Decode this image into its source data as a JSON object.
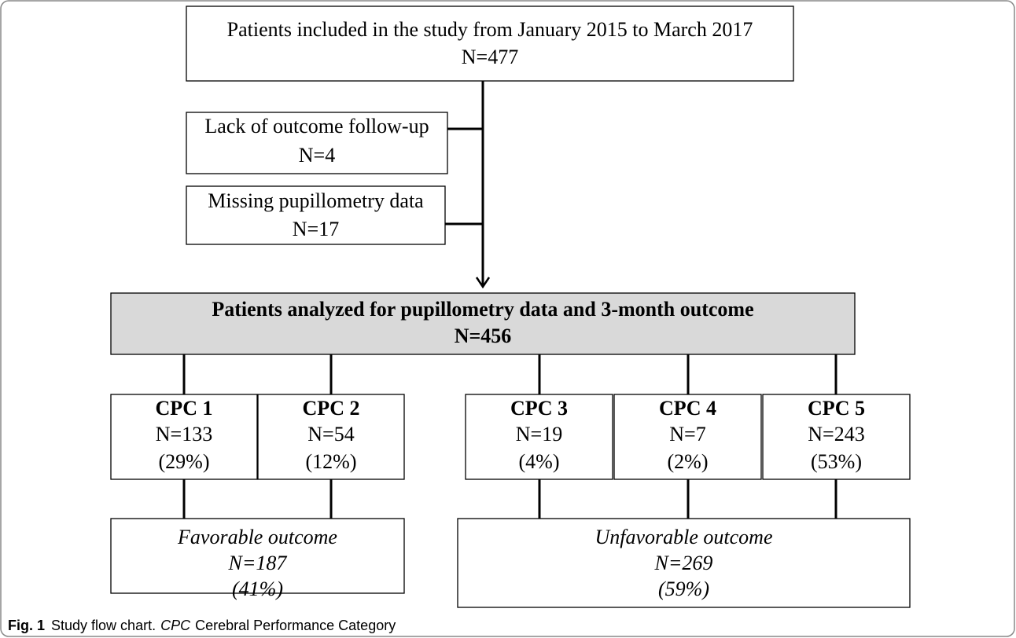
{
  "nodes": [
    {
      "lines": [
        "Patients included in the study from January 2015 to March 2017",
        "N=477"
      ]
    },
    {
      "lines": [
        "Lack of outcome follow-up",
        "N=4"
      ]
    },
    {
      "lines": [
        "Missing pupillometry data",
        "N=17"
      ]
    },
    {
      "lines": [
        "Patients analyzed for pupillometry data and 3-month outcome",
        "N=456"
      ]
    },
    {
      "lines": [
        "CPC 1",
        "N=133",
        "(29%)"
      ]
    },
    {
      "lines": [
        "CPC 2",
        "N=54",
        "(12%)"
      ]
    },
    {
      "lines": [
        "CPC 3",
        "N=19",
        "(4%)"
      ]
    },
    {
      "lines": [
        "CPC 4",
        "N=7",
        "(2%)"
      ]
    },
    {
      "lines": [
        "CPC 5",
        "N=243",
        "(53%)"
      ]
    },
    {
      "lines": [
        "Favorable outcome",
        "N=187",
        "(41%)"
      ]
    },
    {
      "lines": [
        "Unfavorable outcome",
        "N=269",
        "(59%)"
      ]
    }
  ],
  "caption": {
    "label": "Fig. 1",
    "text": "Study flow chart.",
    "abbr": "CPC",
    "definition": "Cerebral Performance Category"
  }
}
